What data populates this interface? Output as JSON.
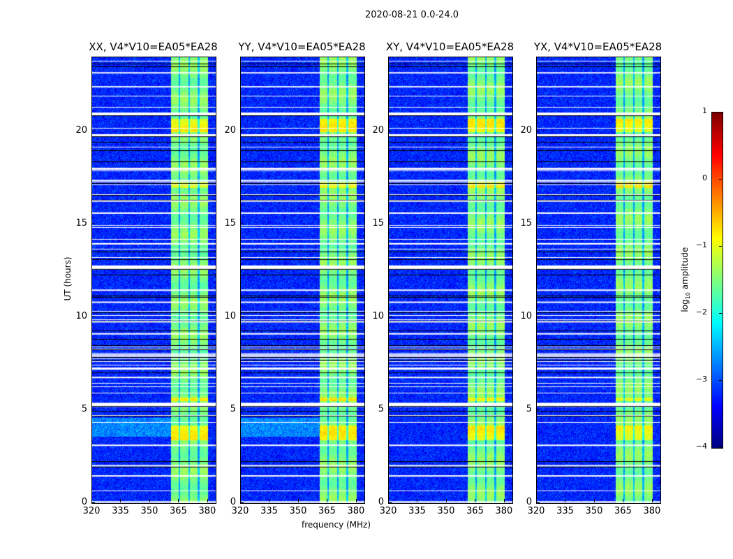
{
  "chart_data": {
    "type": "heatmap",
    "title": "2020-08-21 0.0-24.0",
    "xlabel": "frequency (MHz)",
    "ylabel": "UT (hours)",
    "xlim": [
      320,
      384
    ],
    "ylim": [
      0,
      24
    ],
    "xticks": [
      "320",
      "335",
      "350",
      "365",
      "380"
    ],
    "xtick_values": [
      320,
      335,
      350,
      365,
      380
    ],
    "yticks": [
      "0",
      "5",
      "10",
      "15",
      "20"
    ],
    "ytick_values": [
      0,
      5,
      10,
      15,
      20
    ],
    "panels": [
      {
        "title": "XX, V4*V10=EA05*EA28"
      },
      {
        "title": "YY, V4*V10=EA05*EA28"
      },
      {
        "title": "XY, V4*V10=EA05*EA28"
      },
      {
        "title": "YX, V4*V10=EA05*EA28"
      }
    ],
    "colorbar": {
      "label_main": "log",
      "label_sub": "10",
      "label_rest": " amplitude",
      "range": [
        -4,
        1
      ],
      "colormap": "jet",
      "ticks": [
        "1",
        "0",
        "−1",
        "−2",
        "−3",
        "−4"
      ],
      "tick_values": [
        1,
        0,
        -1,
        -2,
        -3,
        -4
      ]
    },
    "background_log_amplitude": -3.2,
    "band_mhz": [
      360.5,
      380
    ],
    "band_log_amplitude": -1.5,
    "flagged_hours": [
      0.05,
      1.5,
      2.05,
      3.15,
      5.25,
      5.4,
      6.8,
      7.3,
      8.0,
      9.15,
      9.8,
      10.85,
      11.5,
      12.65,
      12.75,
      14.0,
      15.65,
      16.3,
      17.4,
      18.05,
      19.85,
      20.95,
      22.45,
      23.2
    ],
    "bright_segments_hours": [
      [
        3.4,
        4.2
      ],
      [
        5.5,
        5.7
      ],
      [
        17.0,
        17.3
      ],
      [
        20.0,
        20.7
      ]
    ]
  }
}
